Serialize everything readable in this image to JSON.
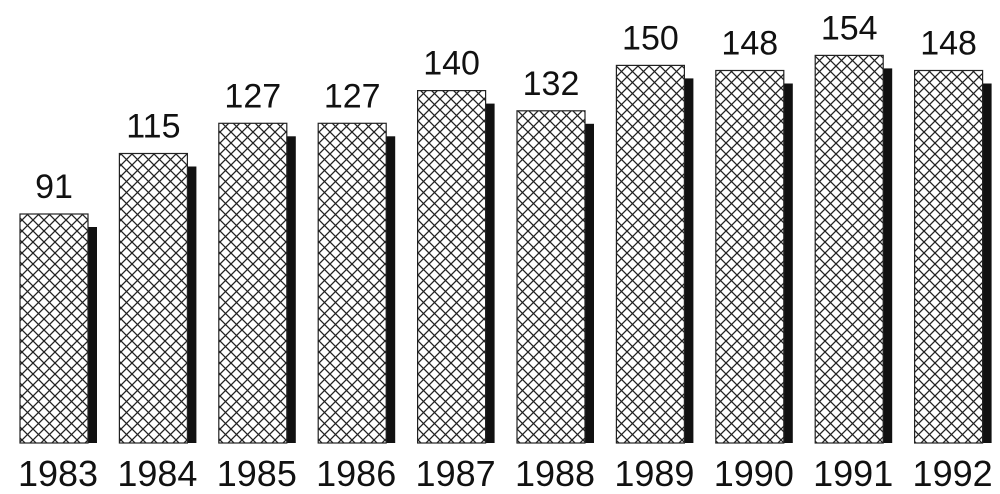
{
  "chart_data": {
    "type": "bar",
    "categories": [
      "1983",
      "1984",
      "1985",
      "1986",
      "1987",
      "1988",
      "1989",
      "1990",
      "1991",
      "1992"
    ],
    "values": [
      91,
      115,
      127,
      127,
      140,
      132,
      150,
      148,
      154,
      148
    ],
    "data_labels": [
      "91",
      "115",
      "127",
      "127",
      "140",
      "132",
      "150",
      "148",
      "154",
      "148"
    ],
    "title": "",
    "xlabel": "",
    "ylabel": "",
    "ylim": [
      0,
      160
    ],
    "grid": false,
    "legend": "none",
    "bar_fill": "crosshatch",
    "bar_shadow": "black drop shadow to the right"
  }
}
